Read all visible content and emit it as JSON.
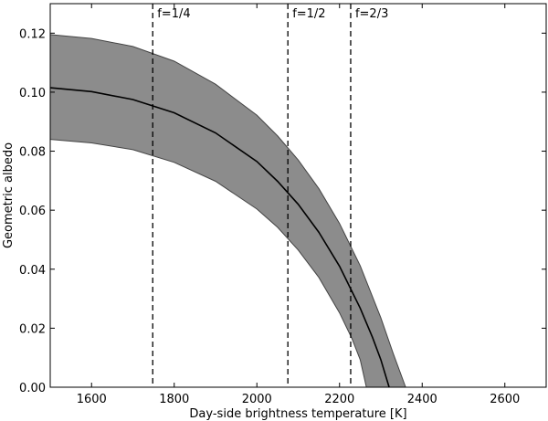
{
  "chart_data": {
    "type": "line",
    "title": "",
    "xlabel": "Day-side brightness temperature [K]",
    "ylabel": "Geometric albedo",
    "xlim": [
      1500,
      2700
    ],
    "ylim": [
      0.0,
      0.13
    ],
    "xticks": [
      1600,
      1800,
      2000,
      2200,
      2400,
      2600
    ],
    "xtick_labels": [
      "1600",
      "1800",
      "2000",
      "2200",
      "2400",
      "2600"
    ],
    "yticks": [
      0.0,
      0.02,
      0.04,
      0.06,
      0.08,
      0.1,
      0.12
    ],
    "ytick_labels": [
      "0.00",
      "0.02",
      "0.04",
      "0.06",
      "0.08",
      "0.10",
      "0.12"
    ],
    "grid": false,
    "series": [
      {
        "role": "central",
        "color": "#000000",
        "x": [
          1500,
          1600,
          1700,
          1800,
          1900,
          2000,
          2050,
          2100,
          2150,
          2200,
          2250,
          2280,
          2300,
          2320
        ],
        "y": [
          0.1015,
          0.1002,
          0.0975,
          0.093,
          0.0862,
          0.0765,
          0.0698,
          0.062,
          0.0525,
          0.041,
          0.0268,
          0.0168,
          0.0093,
          0.0
        ]
      },
      {
        "role": "band-upper",
        "color": "#444444",
        "x": [
          1500,
          1600,
          1700,
          1800,
          1900,
          2000,
          2050,
          2100,
          2150,
          2200,
          2250,
          2300,
          2330,
          2360
        ],
        "y": [
          0.1195,
          0.1182,
          0.1155,
          0.1105,
          0.1027,
          0.0922,
          0.0852,
          0.077,
          0.0673,
          0.0555,
          0.0412,
          0.0235,
          0.0114,
          0.0
        ]
      },
      {
        "role": "band-lower",
        "color": "#444444",
        "x": [
          1500,
          1600,
          1700,
          1800,
          1900,
          2000,
          2050,
          2100,
          2150,
          2200,
          2230,
          2250,
          2265
        ],
        "y": [
          0.084,
          0.0828,
          0.0805,
          0.0762,
          0.0698,
          0.0604,
          0.0542,
          0.0465,
          0.0372,
          0.0252,
          0.0165,
          0.0093,
          0.0
        ]
      }
    ],
    "band_fill_color": "#8c8c8c",
    "vlines": [
      {
        "x": 1748,
        "label": "f=1/4"
      },
      {
        "x": 2075,
        "label": "f=1/2"
      },
      {
        "x": 2227,
        "label": "f=2/3"
      }
    ]
  }
}
